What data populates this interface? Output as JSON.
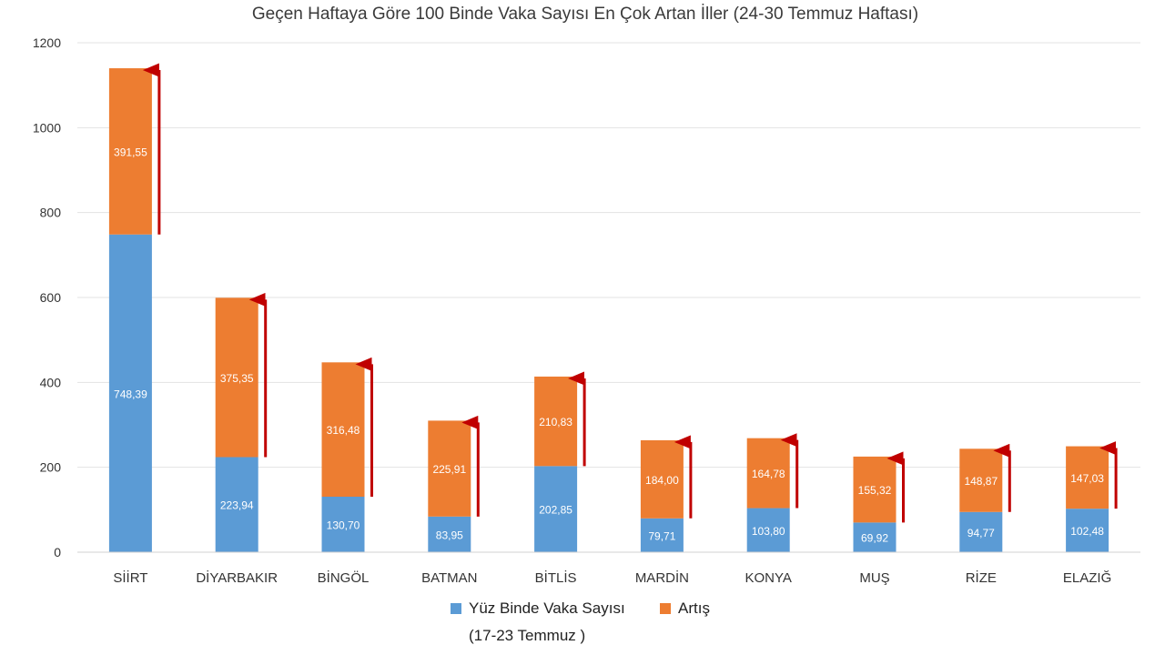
{
  "chart_data": {
    "type": "bar",
    "stacked": true,
    "title": "Geçen Haftaya Göre 100 Binde Vaka Sayısı En Çok Artan İller (24-30 Temmuz Haftası)",
    "categories": [
      "SİİRT",
      "DİYARBAKIR",
      "BİNGÖL",
      "BATMAN",
      "BİTLİS",
      "MARDİN",
      "KONYA",
      "MUŞ",
      "RİZE",
      "ELAZIĞ"
    ],
    "series": [
      {
        "name": "Yüz Binde Vaka Sayısı",
        "name_line2": "(17-23 Temmuz )",
        "color": "#5b9bd5",
        "values": [
          748.39,
          223.94,
          130.7,
          83.95,
          202.85,
          79.71,
          103.8,
          69.92,
          94.77,
          102.48
        ],
        "labels": [
          "748,39",
          "223,94",
          "130,70",
          "83,95",
          "202,85",
          "79,71",
          "103,80",
          "69,92",
          "94,77",
          "102,48"
        ]
      },
      {
        "name": "Artış",
        "color": "#ed7d31",
        "values": [
          391.55,
          375.35,
          316.48,
          225.91,
          210.83,
          184.0,
          164.78,
          155.32,
          148.87,
          147.03
        ],
        "labels": [
          "391,55",
          "375,35",
          "316,48",
          "225,91",
          "210,83",
          "184,00",
          "164,78",
          "155,32",
          "148,87",
          "147,03"
        ]
      }
    ],
    "yticks": [
      "0",
      "200",
      "400",
      "600",
      "800",
      "1000",
      "1200"
    ],
    "ylim": [
      0,
      1200
    ],
    "grid": true,
    "legend_position": "bottom",
    "arrow_color": "#c00000"
  }
}
